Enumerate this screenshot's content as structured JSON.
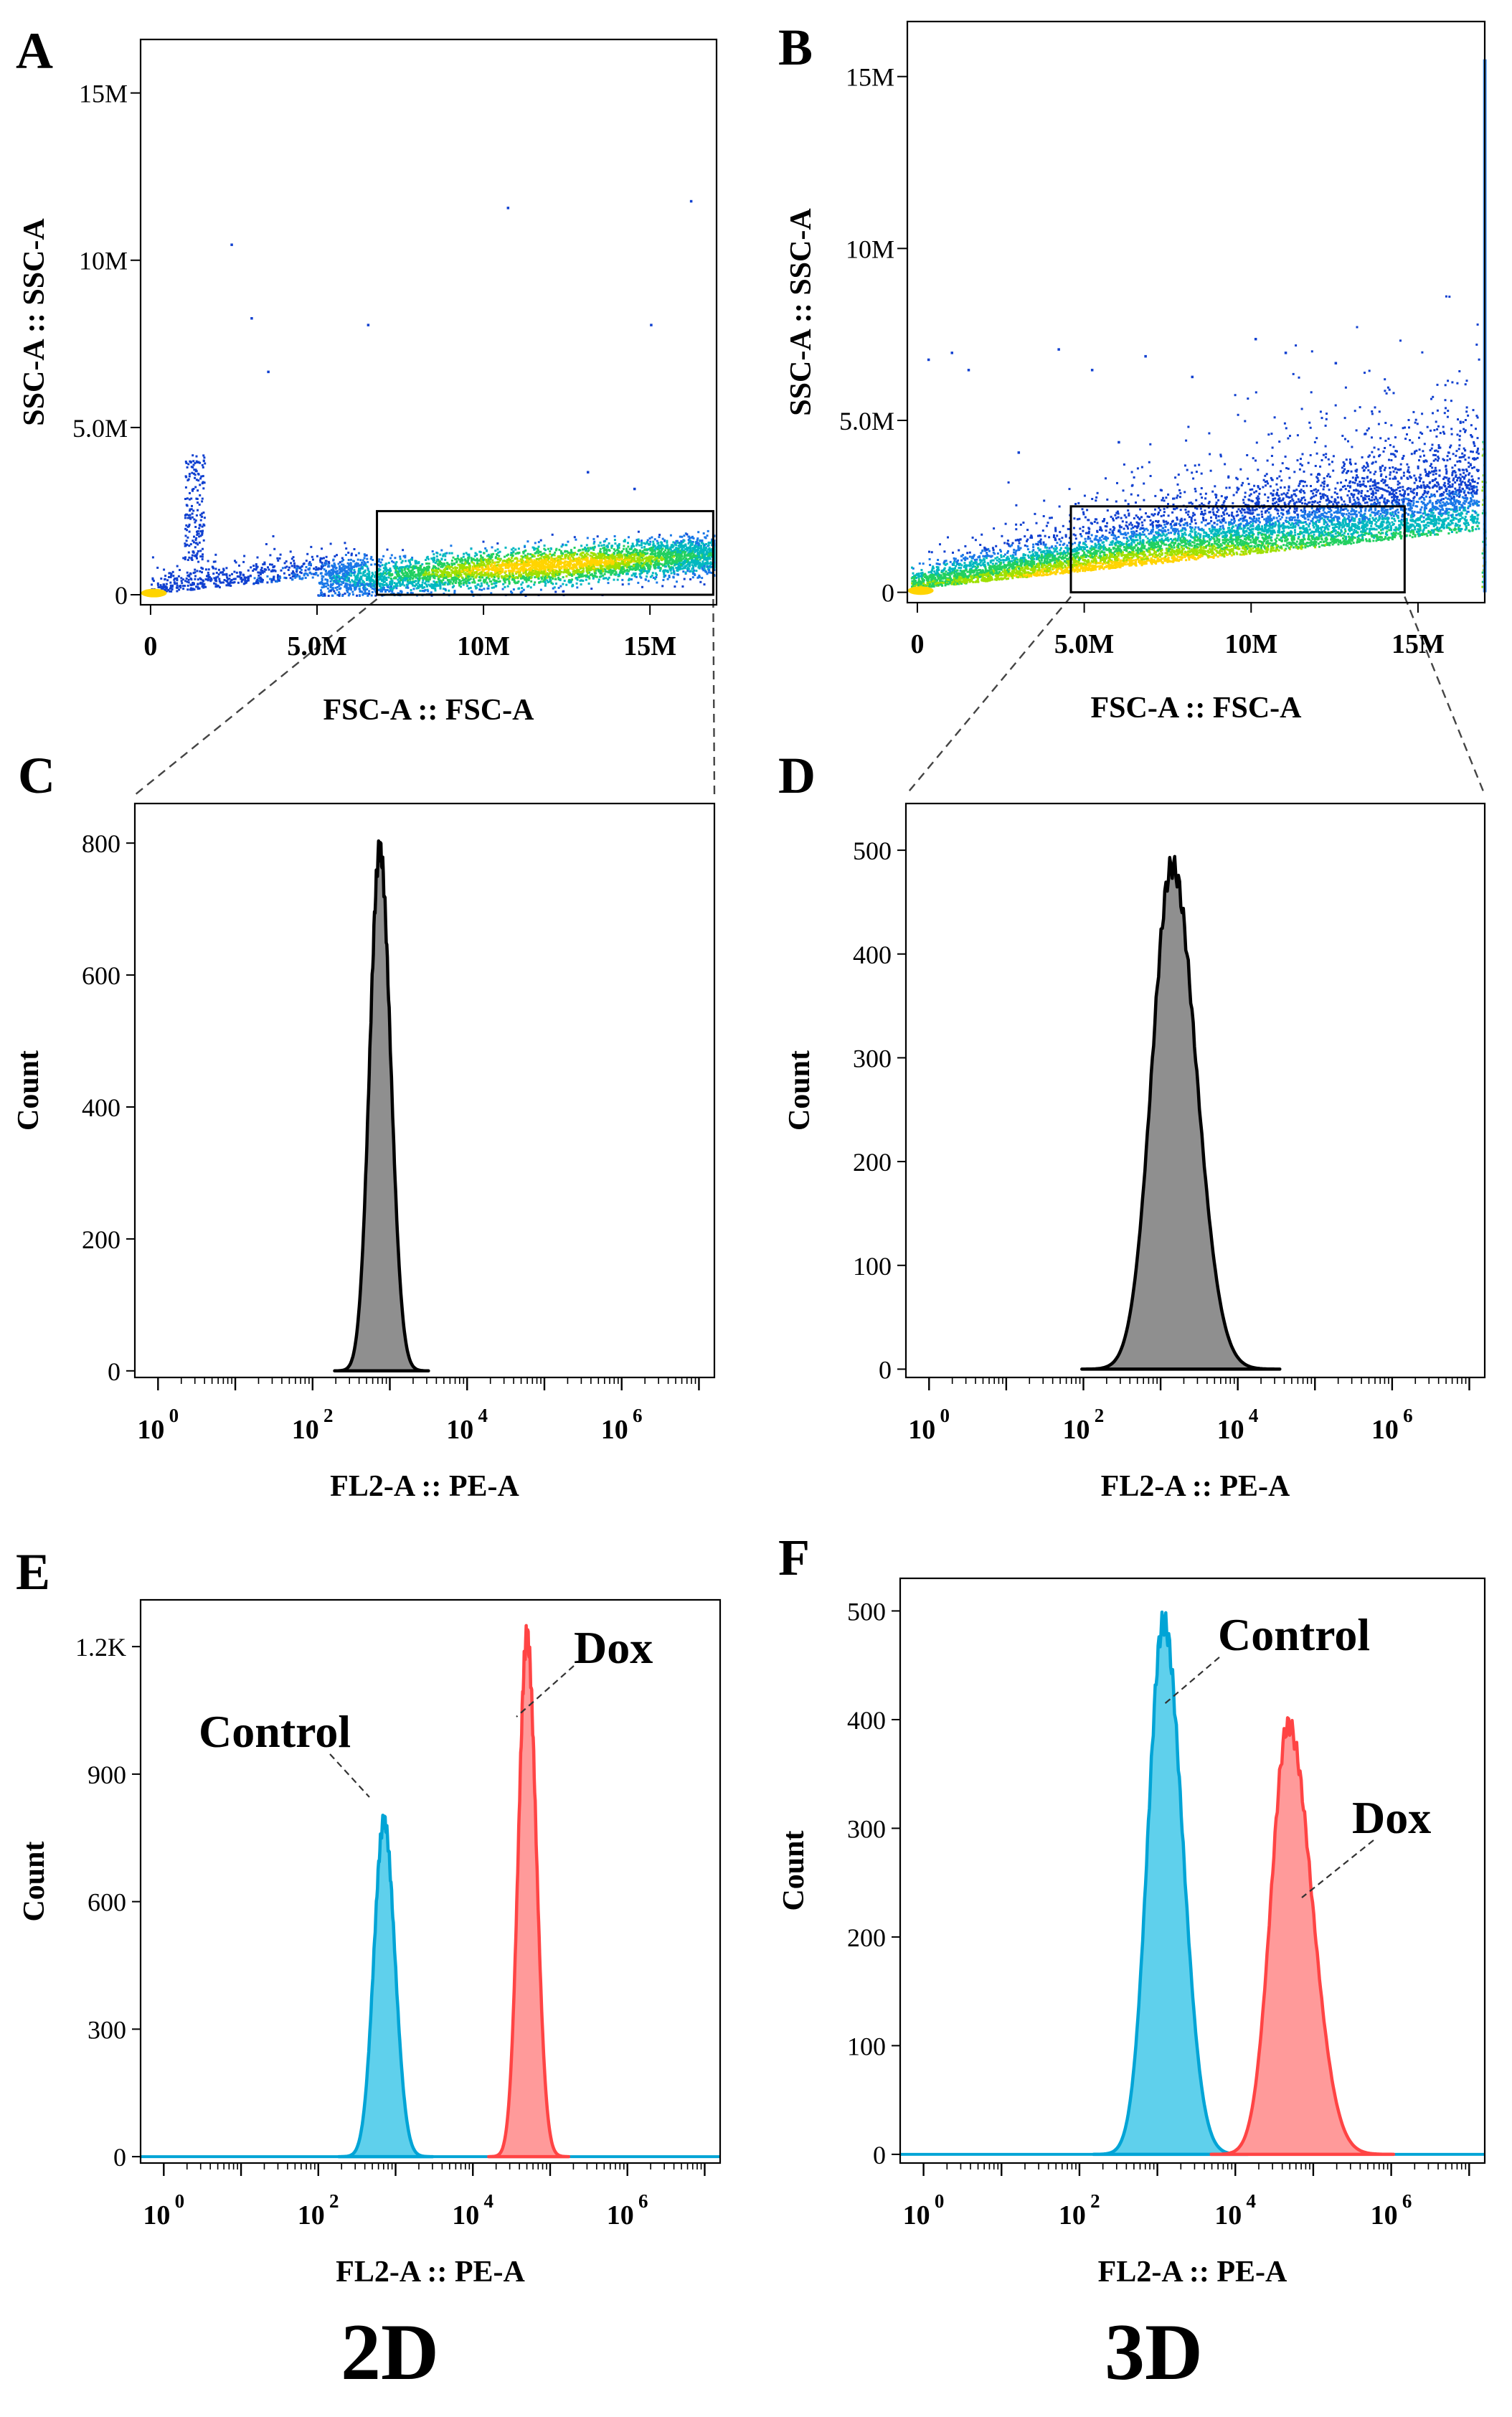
{
  "figure": {
    "bottom_labels": {
      "left": "2D",
      "right": "3D"
    }
  },
  "chart_data": [
    {
      "panel": "A",
      "type": "scatter",
      "title": "",
      "xlabel": "FSC-A :: FSC-A",
      "ylabel": "SSC-A :: SSC-A",
      "xlim": [
        -0.3,
        17.0
      ],
      "ylim": [
        -0.3,
        16.6
      ],
      "x_ticks": [
        0,
        5,
        10,
        15
      ],
      "x_tick_labels": [
        "0",
        "5.0M",
        "10M",
        "15M"
      ],
      "y_ticks": [
        0,
        5,
        10,
        15
      ],
      "y_tick_labels": [
        "0",
        "5.0M",
        "10M",
        "15M"
      ],
      "units": "millions",
      "gate": {
        "x": [
          6.8,
          16.9
        ],
        "y": [
          0.0,
          2.5
        ]
      },
      "outliers": [
        [
          2.4,
          10.5
        ],
        [
          3.0,
          8.3
        ],
        [
          3.5,
          6.7
        ],
        [
          6.5,
          8.1
        ],
        [
          10.7,
          11.6
        ],
        [
          15.0,
          8.1
        ],
        [
          16.2,
          11.8
        ],
        [
          13.1,
          3.7
        ],
        [
          14.5,
          3.2
        ],
        [
          1.4,
          4.0
        ]
      ]
    },
    {
      "panel": "B",
      "type": "scatter",
      "title": "",
      "xlabel": "FSC-A :: FSC-A",
      "ylabel": "SSC-A :: SSC-A",
      "xlim": [
        -0.3,
        17.0
      ],
      "ylim": [
        -0.3,
        16.6
      ],
      "x_ticks": [
        0,
        5,
        10,
        15
      ],
      "x_tick_labels": [
        "0",
        "5.0M",
        "10M",
        "15M"
      ],
      "y_ticks": [
        0,
        5,
        10,
        15
      ],
      "y_tick_labels": [
        "0",
        "5.0M",
        "10M",
        "15M"
      ],
      "units": "millions",
      "gate": {
        "x": [
          4.6,
          14.6
        ],
        "y": [
          0.0,
          2.5
        ]
      },
      "outliers": [
        [
          0.3,
          6.8
        ],
        [
          1.0,
          7.0
        ],
        [
          1.5,
          6.5
        ],
        [
          4.2,
          7.1
        ],
        [
          5.2,
          6.5
        ],
        [
          6.8,
          6.9
        ],
        [
          8.2,
          6.3
        ],
        [
          10.1,
          7.4
        ],
        [
          11.0,
          7.0
        ],
        [
          12.5,
          6.7
        ],
        [
          3.0,
          4.1
        ],
        [
          6.0,
          4.4
        ]
      ]
    },
    {
      "panel": "C",
      "type": "area",
      "title": "",
      "xlabel": "FL2-A :: PE-A",
      "ylabel": "Count",
      "x_scale": "log10",
      "xlim": [
        -0.3,
        7.2
      ],
      "ylim": [
        -10,
        860
      ],
      "x_ticks": [
        0,
        2,
        4,
        6
      ],
      "x_tick_bases": [
        "10",
        "10",
        "10",
        "10"
      ],
      "x_tick_exps": [
        "0",
        "2",
        "4",
        "6"
      ],
      "y_ticks": [
        0,
        200,
        400,
        600,
        800
      ],
      "y_tick_labels": [
        "0",
        "200",
        "400",
        "600",
        "800"
      ],
      "series": [
        {
          "name": "",
          "color": "#8f8f8f",
          "stroke": "#000000",
          "peak_log10": 2.87,
          "peak_count": 790,
          "sigma_left": 0.13,
          "sigma_right": 0.14
        }
      ]
    },
    {
      "panel": "D",
      "type": "area",
      "title": "",
      "xlabel": "FL2-A :: PE-A",
      "ylabel": "Count",
      "x_scale": "log10",
      "xlim": [
        -0.3,
        7.2
      ],
      "ylim": [
        -8,
        545
      ],
      "x_ticks": [
        0,
        2,
        4,
        6
      ],
      "x_tick_bases": [
        "10",
        "10",
        "10",
        "10"
      ],
      "x_tick_exps": [
        "0",
        "2",
        "4",
        "6"
      ],
      "y_ticks": [
        0,
        100,
        200,
        300,
        400,
        500
      ],
      "y_tick_labels": [
        "0",
        "100",
        "200",
        "300",
        "400",
        "500"
      ],
      "series": [
        {
          "name": "",
          "color": "#8f8f8f",
          "stroke": "#000000",
          "peak_log10": 3.15,
          "peak_count": 485,
          "sigma_left": 0.26,
          "sigma_right": 0.31
        }
      ]
    },
    {
      "panel": "E",
      "type": "area",
      "title": "",
      "xlabel": "FL2-A :: PE-A",
      "ylabel": "Count",
      "x_scale": "log10",
      "xlim": [
        -0.3,
        7.2
      ],
      "ylim": [
        -15,
        1310
      ],
      "x_ticks": [
        0,
        2,
        4,
        6
      ],
      "x_tick_bases": [
        "10",
        "10",
        "10",
        "10"
      ],
      "x_tick_exps": [
        "0",
        "2",
        "4",
        "6"
      ],
      "y_ticks": [
        0,
        300,
        600,
        900,
        1200
      ],
      "y_tick_labels": [
        "0",
        "300",
        "600",
        "900",
        "1.2K"
      ],
      "series": [
        {
          "name": "Control",
          "color": "#5fd0ec",
          "stroke": "#00a4d6",
          "peak_log10": 2.85,
          "peak_count": 790,
          "sigma_left": 0.13,
          "sigma_right": 0.14
        },
        {
          "name": "Dox",
          "color": "#ff9a9a",
          "stroke": "#ff4444",
          "peak_log10": 4.7,
          "peak_count": 1225,
          "sigma_left": 0.11,
          "sigma_right": 0.12
        }
      ],
      "annotations": [
        "Control",
        "Dox"
      ]
    },
    {
      "panel": "F",
      "type": "area",
      "title": "",
      "xlabel": "FL2-A :: PE-A",
      "ylabel": "Count",
      "x_scale": "log10",
      "xlim": [
        -0.3,
        7.2
      ],
      "ylim": [
        -8,
        530
      ],
      "x_ticks": [
        0,
        2,
        4,
        6
      ],
      "x_tick_bases": [
        "10",
        "10",
        "10",
        "10"
      ],
      "x_tick_exps": [
        "0",
        "2",
        "4",
        "6"
      ],
      "y_ticks": [
        0,
        100,
        200,
        300,
        400,
        500
      ],
      "y_tick_labels": [
        "0",
        "100",
        "200",
        "300",
        "400",
        "500"
      ],
      "series": [
        {
          "name": "Control",
          "color": "#5fd0ec",
          "stroke": "#00a4d6",
          "peak_log10": 3.08,
          "peak_count": 490,
          "sigma_left": 0.2,
          "sigma_right": 0.24
        },
        {
          "name": "Dox",
          "color": "#ff9a9a",
          "stroke": "#ff4444",
          "peak_log10": 4.68,
          "peak_count": 395,
          "sigma_left": 0.22,
          "sigma_right": 0.3
        }
      ],
      "annotations": [
        "Control",
        "Dox"
      ]
    }
  ]
}
